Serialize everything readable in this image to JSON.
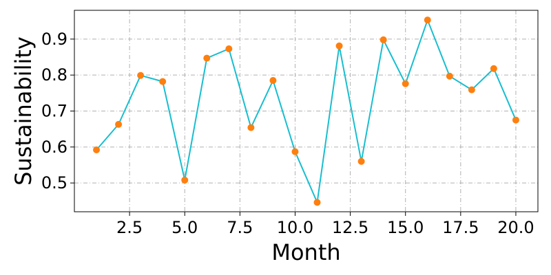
{
  "chart_data": {
    "type": "line",
    "xlabel": "Month",
    "ylabel": "Sustainability",
    "xlim": [
      -0.0,
      21.0
    ],
    "ylim": [
      0.42,
      0.98
    ],
    "x_ticks": [
      2.5,
      5.0,
      7.5,
      10.0,
      12.5,
      15.0,
      17.5,
      20.0
    ],
    "x_tick_labels": [
      "2.5",
      "5.0",
      "7.5",
      "10.0",
      "12.5",
      "15.0",
      "17.5",
      "20.0"
    ],
    "y_ticks": [
      0.5,
      0.6,
      0.7,
      0.8,
      0.9
    ],
    "y_tick_labels": [
      "0.5",
      "0.6",
      "0.7",
      "0.8",
      "0.9"
    ],
    "grid": true,
    "series": [
      {
        "line_color": "#17becf",
        "marker_color": "#ff7f0e",
        "x": [
          1,
          2,
          3,
          4,
          5,
          6,
          7,
          8,
          9,
          10,
          11,
          12,
          13,
          14,
          15,
          16,
          17,
          18,
          19,
          20
        ],
        "values": [
          0.592,
          0.663,
          0.799,
          0.782,
          0.508,
          0.847,
          0.873,
          0.654,
          0.785,
          0.587,
          0.446,
          0.881,
          0.56,
          0.898,
          0.776,
          0.953,
          0.797,
          0.759,
          0.818,
          0.675
        ]
      }
    ]
  }
}
